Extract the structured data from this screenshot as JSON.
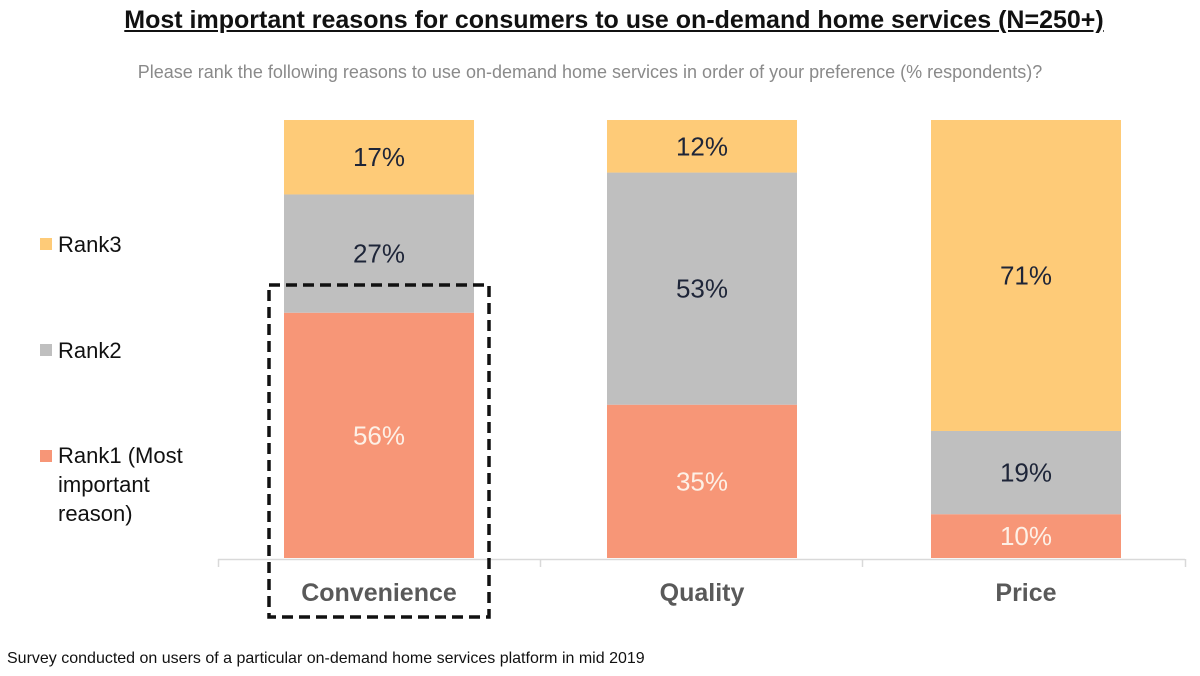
{
  "chart_data": {
    "type": "bar",
    "stacked": true,
    "title": "Most important reasons for consumers to use on-demand home services (N=250+)",
    "subtitle": "Please rank the following reasons to use on-demand home services in order of your preference (% respondents)?",
    "categories": [
      "Convenience",
      "Quality",
      "Price"
    ],
    "series": [
      {
        "name": "Rank1 (Most important reason)",
        "values": [
          56,
          35,
          10
        ],
        "labels": [
          "56%",
          "35%",
          "10%"
        ],
        "color": "#F79677",
        "label_color": "#FDF0E6"
      },
      {
        "name": "Rank2",
        "values": [
          27,
          53,
          19
        ],
        "labels": [
          "27%",
          "53%",
          "19%"
        ],
        "color": "#BFBFBF",
        "label_color": "#1E2538"
      },
      {
        "name": "Rank3",
        "values": [
          17,
          12,
          71
        ],
        "labels": [
          "17%",
          "12%",
          "71%"
        ],
        "color": "#FECB78",
        "label_color": "#1E2538"
      }
    ],
    "ylim": [
      0,
      100
    ],
    "grid": false,
    "legend_position": "left",
    "highlighted_category": "Convenience",
    "footnote": "Survey conducted on users of a particular on-demand home services platform in mid 2019"
  }
}
